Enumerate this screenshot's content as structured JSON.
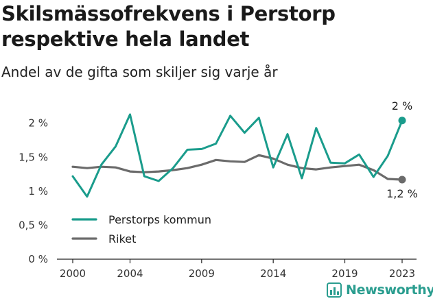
{
  "title": "Skilsmässofrekvens i Perstorp respektive hela landet",
  "subtitle": "Andel av de gifta som skiljer sig varje år",
  "brand": {
    "name": "Newsworthy",
    "icon": "newsworthy-logo-icon",
    "color": "#2a9d8f"
  },
  "chart_data": {
    "type": "line",
    "title": "Skilsmässofrekvens i Perstorp respektive hela landet",
    "subtitle": "Andel av de gifta som skiljer sig varje år",
    "xlabel": "",
    "ylabel": "",
    "x": [
      2000,
      2001,
      2002,
      2003,
      2004,
      2005,
      2006,
      2007,
      2008,
      2009,
      2010,
      2011,
      2012,
      2013,
      2014,
      2015,
      2016,
      2017,
      2018,
      2019,
      2020,
      2021,
      2022,
      2023
    ],
    "xticks": [
      "2000",
      "2004",
      "2009",
      "2014",
      "2019",
      "2023"
    ],
    "xlim": [
      2000,
      2023
    ],
    "yticks": [
      "0 %",
      "0,5 %",
      "1 %",
      "1,5 %",
      "2 %"
    ],
    "ylim": [
      0,
      2.4
    ],
    "grid": false,
    "legend_position": "bottom-left",
    "series": [
      {
        "name": "Perstorps kommun",
        "color": "#1a9c8c",
        "values": [
          1.22,
          0.92,
          1.39,
          1.66,
          2.13,
          1.22,
          1.15,
          1.34,
          1.61,
          1.62,
          1.7,
          2.11,
          1.86,
          2.08,
          1.35,
          1.84,
          1.19,
          1.93,
          1.42,
          1.41,
          1.54,
          1.21,
          1.52,
          2.04
        ],
        "end_label": "2 %"
      },
      {
        "name": "Riket",
        "color": "#6b6b6b",
        "values": [
          1.36,
          1.34,
          1.36,
          1.35,
          1.29,
          1.28,
          1.29,
          1.31,
          1.34,
          1.39,
          1.46,
          1.44,
          1.43,
          1.53,
          1.48,
          1.39,
          1.34,
          1.32,
          1.35,
          1.37,
          1.39,
          1.31,
          1.18,
          1.17
        ],
        "end_label": "1,2 %"
      }
    ]
  }
}
